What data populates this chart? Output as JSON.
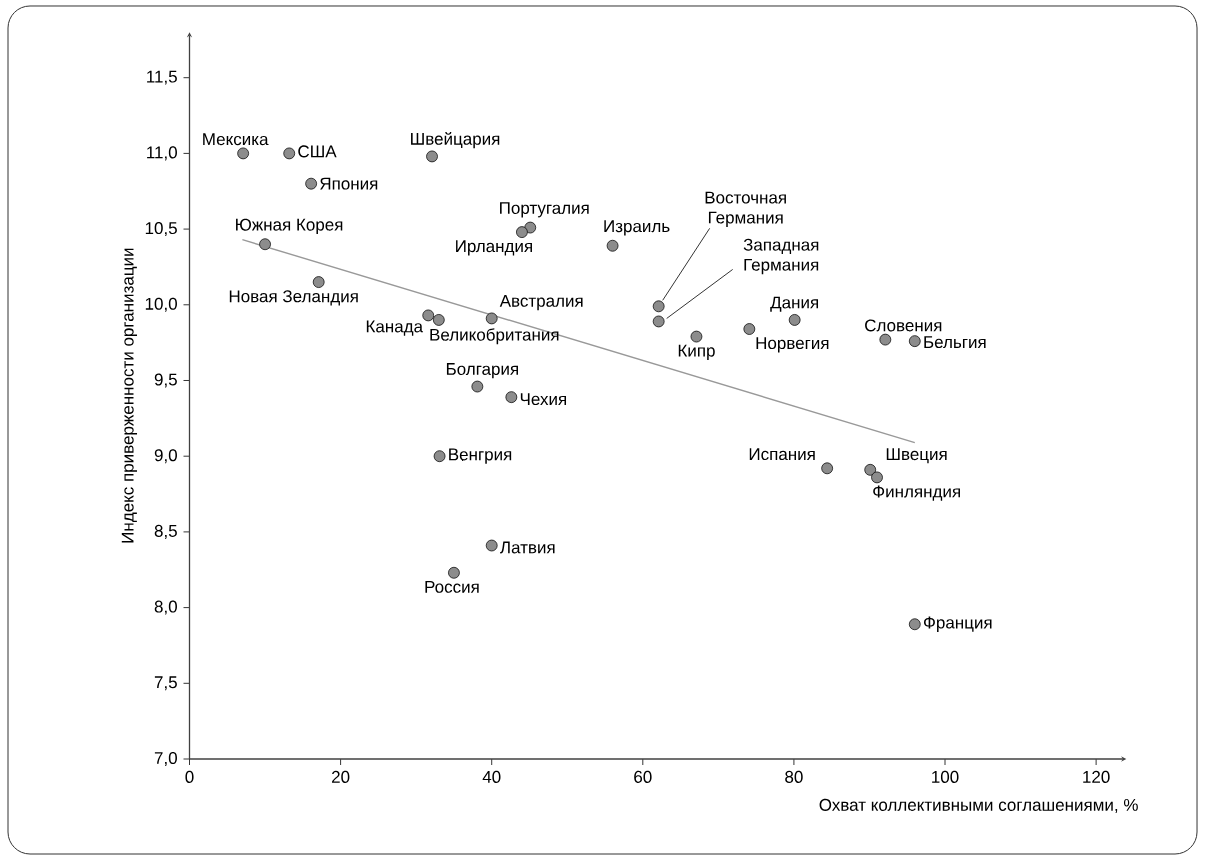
{
  "chart_data": {
    "type": "scatter",
    "xlabel": "Охват коллективными соглашениями, %",
    "ylabel": "Индекс приверженности организации",
    "xlim": [
      0,
      124
    ],
    "ylim": [
      7,
      11.8
    ],
    "xticks": [
      0,
      20,
      40,
      60,
      80,
      100,
      120
    ],
    "yticks": [
      {
        "value": 7,
        "label": "7,0"
      },
      {
        "value": 7.5,
        "label": "7,5"
      },
      {
        "value": 8,
        "label": "8,0"
      },
      {
        "value": 8.5,
        "label": "8,5"
      },
      {
        "value": 9,
        "label": "9,0"
      },
      {
        "value": 9.5,
        "label": "9,5"
      },
      {
        "value": 10,
        "label": "10,0"
      },
      {
        "value": 10.5,
        "label": "10,5"
      },
      {
        "value": 11,
        "label": "11,0"
      },
      {
        "value": 11.5,
        "label": "11,5"
      }
    ],
    "marker": "none",
    "series": [
      {
        "marker": "circle",
        "color": "#8c8c8c",
        "x": [
          7.1,
          13.2,
          32.1,
          16.1,
          45.1,
          44.0,
          56.0,
          10.0,
          17.1,
          31.6,
          33.0,
          40.0,
          38.1,
          42.6,
          33.1,
          40.0,
          35.0,
          62.1,
          62.1,
          67.1,
          74.1,
          80.1,
          92.1,
          96.0,
          84.4,
          90.1,
          91.0,
          96.0
        ],
        "values": [
          11.0,
          11.0,
          10.98,
          10.8,
          10.51,
          10.48,
          10.39,
          10.4,
          10.15,
          9.93,
          9.9,
          9.91,
          9.46,
          9.39,
          9.0,
          8.41,
          8.23,
          9.99,
          9.89,
          9.79,
          9.84,
          9.9,
          9.77,
          9.76,
          8.92,
          8.91,
          8.86,
          7.89
        ]
      },
      {
        "type": "line",
        "color": "#999999",
        "x": [
          7,
          96
        ],
        "values": [
          10.43,
          9.09
        ]
      }
    ],
    "annotations": [
      {
        "text": "Мексика",
        "x": 7.1,
        "y": 11.0
      },
      {
        "text": "США",
        "x": 13.2,
        "y": 11.0
      },
      {
        "text": "Швейцария",
        "x": 32.1,
        "y": 10.98
      },
      {
        "text": "Япония",
        "x": 16.1,
        "y": 10.8
      },
      {
        "text": "Португалия",
        "x": 45.1,
        "y": 10.51
      },
      {
        "text": "Ирландия",
        "x": 44.0,
        "y": 10.48
      },
      {
        "text": "Израиль",
        "x": 56.0,
        "y": 10.39
      },
      {
        "text": "Южная Корея",
        "x": 10.0,
        "y": 10.4
      },
      {
        "text": "Новая Зеландия",
        "x": 17.1,
        "y": 10.15
      },
      {
        "text": "Канада",
        "x": 31.6,
        "y": 9.93
      },
      {
        "text": "Великобритания",
        "x": 33.0,
        "y": 9.9
      },
      {
        "text": "Австралия",
        "x": 40.0,
        "y": 9.91
      },
      {
        "text": "Болгария",
        "x": 38.1,
        "y": 9.46
      },
      {
        "text": "Чехия",
        "x": 42.6,
        "y": 9.39
      },
      {
        "text": "Венгрия",
        "x": 33.1,
        "y": 9.0
      },
      {
        "text": "Латвия",
        "x": 40.0,
        "y": 8.41
      },
      {
        "text": "Россия",
        "x": 35.0,
        "y": 8.23
      },
      {
        "text": "Восточная Германия",
        "x": 62.1,
        "y": 9.99
      },
      {
        "text": "Западная Германия",
        "x": 62.1,
        "y": 9.89
      },
      {
        "text": "Кипр",
        "x": 67.1,
        "y": 9.79
      },
      {
        "text": "Норвегия",
        "x": 74.1,
        "y": 9.84
      },
      {
        "text": "Дания",
        "x": 80.1,
        "y": 9.9
      },
      {
        "text": "Словения",
        "x": 92.1,
        "y": 9.77
      },
      {
        "text": "Бельгия",
        "x": 96.0,
        "y": 9.76
      },
      {
        "text": "Испания",
        "x": 84.4,
        "y": 8.92
      },
      {
        "text": "Швеция",
        "x": 90.1,
        "y": 8.91
      },
      {
        "text": "Финляндия",
        "x": 91.0,
        "y": 8.86
      },
      {
        "text": "Франция",
        "x": 96.0,
        "y": 7.89
      }
    ]
  }
}
